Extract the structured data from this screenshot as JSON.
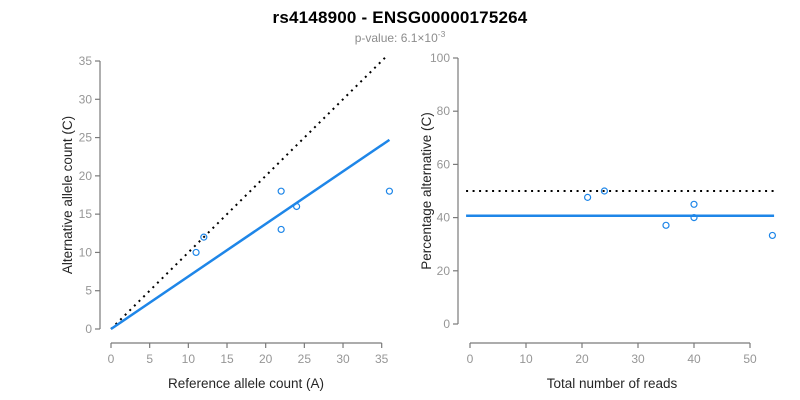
{
  "header": {
    "title": "rs4148900 - ENSG00000175264",
    "subtitle_base": "p-value: 6.1×10",
    "subtitle_exponent": "-3"
  },
  "colors": {
    "accent_blue": "#1e86e8",
    "identity_black": "#000000",
    "axis_gray": "#7a7a7a",
    "tick_label_gray": "#969696",
    "axis_title_dark": "#262626",
    "subtitle_gray": "#8c8c8c"
  },
  "chart_data": [
    {
      "type": "scatter",
      "name": "allele-counts-scatter",
      "xlabel": "Reference allele count (A)",
      "ylabel": "Alternative allele count (C)",
      "xlim": [
        0,
        36
      ],
      "ylim": [
        0,
        36
      ],
      "xticks": [
        0,
        5,
        10,
        15,
        20,
        25,
        30,
        35
      ],
      "yticks": [
        0,
        5,
        10,
        15,
        20,
        25,
        30,
        35
      ],
      "grid": false,
      "points": [
        [
          11,
          10
        ],
        [
          12,
          12
        ],
        [
          22,
          13
        ],
        [
          22,
          18
        ],
        [
          24,
          16
        ],
        [
          36,
          18
        ]
      ],
      "lines": [
        {
          "name": "identity-line",
          "style": "dotted",
          "color": "#000000",
          "x1": 0,
          "y1": 0,
          "x2": 35.8,
          "y2": 35.8
        },
        {
          "name": "fit-line",
          "style": "solid",
          "color": "#1e86e8",
          "x1": 0,
          "y1": 0,
          "x2": 36,
          "y2": 24.7
        }
      ]
    },
    {
      "type": "scatter",
      "name": "percentage-vs-reads-scatter",
      "xlabel": "Total number of reads",
      "ylabel": "Percentage alternative (C)",
      "xlim": [
        0,
        55
      ],
      "ylim": [
        0,
        100
      ],
      "xticks": [
        0,
        10,
        20,
        30,
        40,
        50
      ],
      "yticks": [
        0,
        20,
        40,
        60,
        80,
        100
      ],
      "grid": false,
      "points": [
        [
          21,
          47.6
        ],
        [
          24,
          50
        ],
        [
          35,
          37.1
        ],
        [
          40,
          45
        ],
        [
          40,
          40
        ],
        [
          54,
          33.3
        ]
      ],
      "lines": [
        {
          "name": "expected-50pct-line",
          "style": "dotted",
          "color": "#000000",
          "x1": -0.7,
          "y1": 50,
          "x2": 54.3,
          "y2": 50
        },
        {
          "name": "mean-percentage-line",
          "style": "solid",
          "color": "#1e86e8",
          "x1": -0.7,
          "y1": 40.7,
          "x2": 54.3,
          "y2": 40.7
        }
      ]
    }
  ]
}
